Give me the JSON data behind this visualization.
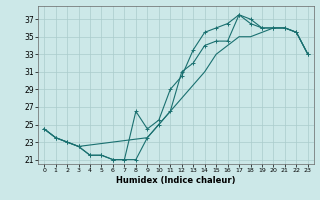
{
  "xlabel": "Humidex (Indice chaleur)",
  "bg_color": "#cce8e8",
  "grid_color": "#aacccc",
  "line_color": "#1a7070",
  "xlim": [
    -0.5,
    23.5
  ],
  "ylim": [
    20.5,
    38.5
  ],
  "xticks": [
    0,
    1,
    2,
    3,
    4,
    5,
    6,
    7,
    8,
    9,
    10,
    11,
    12,
    13,
    14,
    15,
    16,
    17,
    18,
    19,
    20,
    21,
    22,
    23
  ],
  "yticks": [
    21,
    23,
    25,
    27,
    29,
    31,
    33,
    35,
    37
  ],
  "line1_x": [
    0,
    1,
    2,
    3,
    4,
    5,
    6,
    7,
    8,
    9,
    10,
    11,
    12,
    13,
    14,
    15,
    16,
    17,
    18,
    19,
    20,
    21,
    22,
    23
  ],
  "line1_y": [
    24.5,
    23.5,
    23.0,
    22.5,
    21.5,
    21.5,
    21.0,
    21.0,
    21.0,
    23.5,
    25.0,
    26.5,
    31.0,
    32.0,
    34.0,
    34.5,
    34.5,
    37.5,
    37.0,
    36.0,
    36.0,
    36.0,
    35.5,
    33.0
  ],
  "line2_x": [
    0,
    1,
    2,
    3,
    4,
    5,
    6,
    7,
    8,
    9,
    10,
    11,
    12,
    13,
    14,
    15,
    16,
    17,
    18,
    19,
    20,
    21,
    22,
    23
  ],
  "line2_y": [
    24.5,
    23.5,
    23.0,
    22.5,
    21.5,
    21.5,
    21.0,
    21.0,
    26.5,
    24.5,
    25.5,
    29.0,
    30.5,
    33.5,
    35.5,
    36.0,
    36.5,
    37.5,
    36.5,
    36.0,
    36.0,
    36.0,
    35.5,
    33.0
  ],
  "line3_x": [
    0,
    1,
    2,
    3,
    9,
    10,
    11,
    12,
    13,
    14,
    15,
    16,
    17,
    18,
    19,
    20,
    21,
    22,
    23
  ],
  "line3_y": [
    24.5,
    23.5,
    23.0,
    22.5,
    23.5,
    25.0,
    26.5,
    28.0,
    29.5,
    31.0,
    33.0,
    34.0,
    35.0,
    35.0,
    35.5,
    36.0,
    36.0,
    35.5,
    33.0
  ]
}
